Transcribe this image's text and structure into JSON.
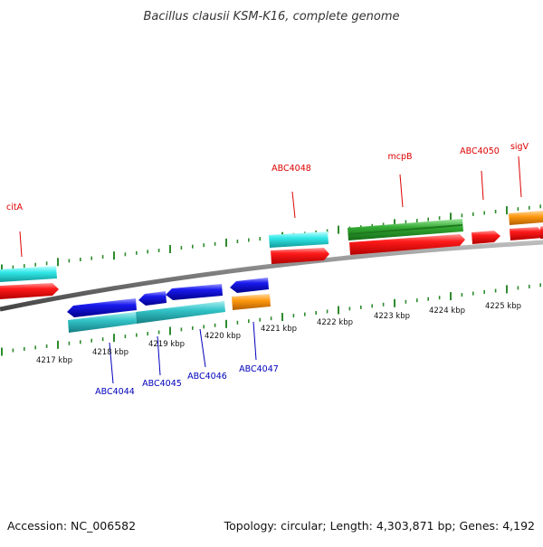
{
  "title": "Bacillus clausii KSM-K16, complete genome",
  "footer": {
    "accession": "Accession: NC_006582",
    "summary": "Topology: circular; Length: 4,303,871 bp; Genes: 4,192"
  },
  "colors": {
    "backbone": "#7a7a7a",
    "tick": "#2e8b2e",
    "label_forward": "#dd0000",
    "label_reverse": "#0000bb",
    "cds_red": "#ff1a1a",
    "cds_blue": "#1a1aee",
    "gene_cyan": "#33e8e8",
    "gene_teal": "#33c4c8",
    "gene_green": "#33aa33",
    "gene_orange": "#ff9a10"
  },
  "kbp_labels": [
    "4217 kbp",
    "4218 kbp",
    "4219 kbp",
    "4220 kbp",
    "4221 kbp",
    "4222 kbp",
    "4223 kbp",
    "4224 kbp",
    "4225 kbp"
  ],
  "forward_labels": [
    "citA",
    "ABC4048",
    "mcpB",
    "ABC4050",
    "sigV"
  ],
  "reverse_labels": [
    "ABC4044",
    "ABC4045",
    "ABC4046",
    "ABC4047"
  ]
}
